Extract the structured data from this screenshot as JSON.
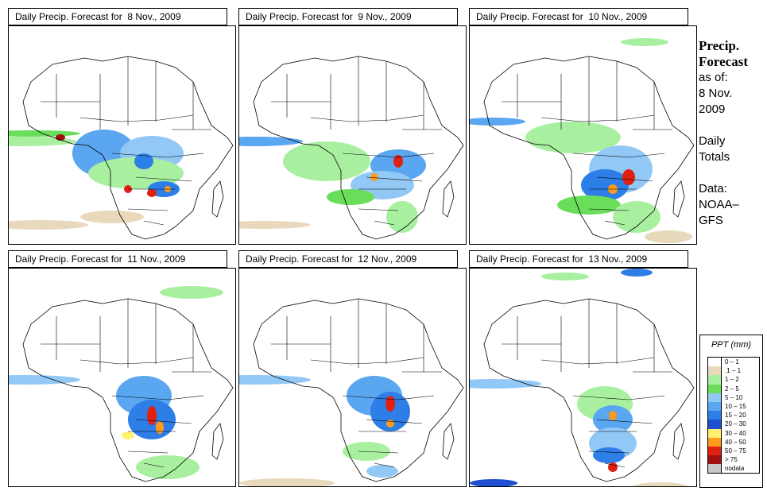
{
  "panels": [
    {
      "title": "Daily Precip. Forecast for  8 Nov., 2009"
    },
    {
      "title": "Daily Precip. Forecast for  9 Nov., 2009"
    },
    {
      "title": "Daily Precip. Forecast for  10 Nov., 2009"
    },
    {
      "title": "Daily Precip. Forecast for  11 Nov., 2009"
    },
    {
      "title": "Daily Precip. Forecast for  12 Nov., 2009"
    },
    {
      "title": "Daily Precip. Forecast for  13 Nov., 2009"
    }
  ],
  "side": {
    "heading1": "Precip.",
    "heading2": "Forecast",
    "asof": "as of:",
    "date1": "8 Nov.",
    "date2": "2009",
    "daily1": "Daily",
    "daily2": "Totals",
    "data1": "Data:",
    "data2": "NOAA–",
    "data3": "GFS"
  },
  "legend": {
    "title": "PPT (mm)",
    "items": [
      {
        "label": "0 – 1",
        "color": "#ffffff"
      },
      {
        "label": ".1 – 1",
        "color": "#e8d9bc"
      },
      {
        "label": "1 – 2",
        "color": "#a8f0a0"
      },
      {
        "label": "2 – 5",
        "color": "#6ade5a"
      },
      {
        "label": "5 – 10",
        "color": "#92c8f6"
      },
      {
        "label": "10 – 15",
        "color": "#5aa6f0"
      },
      {
        "label": "15 – 20",
        "color": "#2e7ee8"
      },
      {
        "label": "20 – 30",
        "color": "#1e4fd0"
      },
      {
        "label": "30 – 40",
        "color": "#fff070"
      },
      {
        "label": "40 – 50",
        "color": "#ff9a1a"
      },
      {
        "label": "50 – 75",
        "color": "#e02010"
      },
      {
        "label": "> 75",
        "color": "#a01010"
      },
      {
        "label": "nodata",
        "color": "#c8c8c8"
      }
    ]
  }
}
